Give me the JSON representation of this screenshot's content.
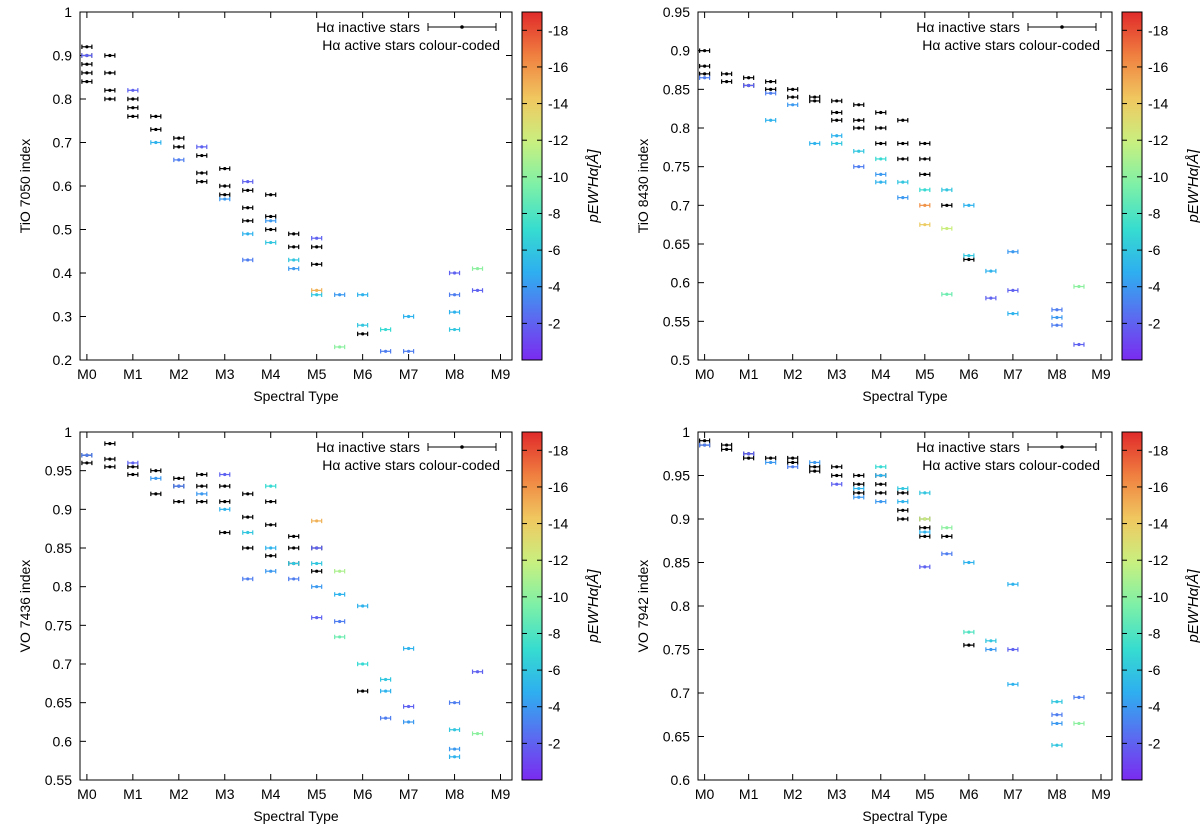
{
  "colorbar": {
    "ticks": [
      "-18",
      "-16",
      "-14",
      "-12",
      "-10",
      "-8",
      "-6",
      "-4",
      "-2"
    ],
    "label": "pEW'Hα[Å]",
    "range": [
      -19,
      0
    ],
    "stops": [
      "#7a2bf0",
      "#5a6cf0",
      "#2eaef0",
      "#36dcd0",
      "#7cf0a8",
      "#c8f080",
      "#f0c860",
      "#f08040",
      "#e02a2a"
    ]
  },
  "legend": {
    "inactive": "Hα inactive stars",
    "active": "Hα active stars colour-coded"
  },
  "chart_data": [
    {
      "type": "scatter",
      "ylabel": "TiO 7050 index",
      "xlabel": "Spectral Type",
      "ylim": [
        0.2,
        1.0
      ],
      "yticks": [
        "0.2",
        "0.3",
        "0.4",
        "0.5",
        "0.6",
        "0.7",
        "0.8",
        "0.9",
        "1"
      ],
      "xticks": [
        "M0",
        "M1",
        "M2",
        "M3",
        "M4",
        "M5",
        "M6",
        "M7",
        "M8",
        "M9"
      ],
      "xrange": [
        -0.15,
        9.25
      ],
      "inactive": [
        [
          0,
          0.92
        ],
        [
          0,
          0.9
        ],
        [
          0,
          0.88
        ],
        [
          0,
          0.86
        ],
        [
          0,
          0.84
        ],
        [
          0.5,
          0.9
        ],
        [
          0.5,
          0.86
        ],
        [
          0.5,
          0.82
        ],
        [
          0.5,
          0.8
        ],
        [
          1,
          0.8
        ],
        [
          1,
          0.78
        ],
        [
          1,
          0.76
        ],
        [
          1.5,
          0.76
        ],
        [
          1.5,
          0.73
        ],
        [
          2,
          0.71
        ],
        [
          2,
          0.69
        ],
        [
          2.5,
          0.67
        ],
        [
          2.5,
          0.63
        ],
        [
          2.5,
          0.61
        ],
        [
          3,
          0.64
        ],
        [
          3,
          0.6
        ],
        [
          3,
          0.58
        ],
        [
          3.5,
          0.59
        ],
        [
          3.5,
          0.55
        ],
        [
          3.5,
          0.52
        ],
        [
          4,
          0.58
        ],
        [
          4,
          0.53
        ],
        [
          4,
          0.5
        ],
        [
          4.5,
          0.49
        ],
        [
          4.5,
          0.46
        ],
        [
          5,
          0.46
        ],
        [
          5,
          0.42
        ],
        [
          6,
          0.26
        ]
      ],
      "active": [
        [
          0,
          0.9,
          -2
        ],
        [
          1,
          0.82,
          -2
        ],
        [
          1.5,
          0.7,
          -5
        ],
        [
          2,
          0.66,
          -3
        ],
        [
          2.5,
          0.69,
          -2
        ],
        [
          3,
          0.57,
          -4
        ],
        [
          3.5,
          0.61,
          -2
        ],
        [
          3.5,
          0.49,
          -5
        ],
        [
          3.5,
          0.43,
          -3
        ],
        [
          4,
          0.47,
          -6
        ],
        [
          4,
          0.52,
          -4
        ],
        [
          4.5,
          0.43,
          -6
        ],
        [
          4.5,
          0.41,
          -4
        ],
        [
          5,
          0.48,
          -2
        ],
        [
          5,
          0.36,
          -15
        ],
        [
          5,
          0.35,
          -6
        ],
        [
          5.5,
          0.35,
          -4
        ],
        [
          5.5,
          0.23,
          -10
        ],
        [
          6,
          0.35,
          -5
        ],
        [
          6,
          0.28,
          -6
        ],
        [
          6.5,
          0.27,
          -7
        ],
        [
          6.5,
          0.22,
          -3
        ],
        [
          7,
          0.3,
          -5
        ],
        [
          7,
          0.22,
          -3
        ],
        [
          8,
          0.4,
          -2
        ],
        [
          8,
          0.35,
          -3
        ],
        [
          8,
          0.31,
          -5
        ],
        [
          8,
          0.27,
          -6
        ],
        [
          8.5,
          0.41,
          -10
        ],
        [
          8.5,
          0.36,
          -2
        ]
      ]
    },
    {
      "type": "scatter",
      "ylabel": "TiO 8430 index",
      "xlabel": "Spectral Type",
      "ylim": [
        0.5,
        0.95
      ],
      "yticks": [
        "0.5",
        "0.55",
        "0.6",
        "0.65",
        "0.7",
        "0.75",
        "0.8",
        "0.85",
        "0.9",
        "0.95"
      ],
      "xticks": [
        "M0",
        "M1",
        "M2",
        "M3",
        "M4",
        "M5",
        "M6",
        "M7",
        "M8",
        "M9"
      ],
      "xrange": [
        -0.15,
        9.25
      ],
      "inactive": [
        [
          0,
          0.9
        ],
        [
          0,
          0.88
        ],
        [
          0,
          0.87
        ],
        [
          0.5,
          0.87
        ],
        [
          0.5,
          0.86
        ],
        [
          1,
          0.865
        ],
        [
          1,
          0.855
        ],
        [
          1.5,
          0.86
        ],
        [
          1.5,
          0.85
        ],
        [
          2,
          0.85
        ],
        [
          2,
          0.84
        ],
        [
          2.5,
          0.84
        ],
        [
          2.5,
          0.835
        ],
        [
          3,
          0.835
        ],
        [
          3,
          0.82
        ],
        [
          3,
          0.81
        ],
        [
          3.5,
          0.83
        ],
        [
          3.5,
          0.81
        ],
        [
          3.5,
          0.8
        ],
        [
          4,
          0.82
        ],
        [
          4,
          0.8
        ],
        [
          4,
          0.78
        ],
        [
          4.5,
          0.81
        ],
        [
          4.5,
          0.78
        ],
        [
          4.5,
          0.76
        ],
        [
          5,
          0.78
        ],
        [
          5,
          0.76
        ],
        [
          5,
          0.74
        ],
        [
          5.5,
          0.7
        ],
        [
          6,
          0.63
        ]
      ],
      "active": [
        [
          0,
          0.865,
          -3
        ],
        [
          1,
          0.855,
          -2
        ],
        [
          1.5,
          0.81,
          -5
        ],
        [
          1.5,
          0.845,
          -3
        ],
        [
          2,
          0.83,
          -4
        ],
        [
          2.5,
          0.78,
          -5
        ],
        [
          3,
          0.79,
          -5
        ],
        [
          3,
          0.78,
          -6
        ],
        [
          3.5,
          0.75,
          -3
        ],
        [
          3.5,
          0.77,
          -6
        ],
        [
          4,
          0.73,
          -5
        ],
        [
          4,
          0.76,
          -7
        ],
        [
          4,
          0.74,
          -4
        ],
        [
          4.5,
          0.73,
          -6
        ],
        [
          4.5,
          0.71,
          -4
        ],
        [
          5,
          0.72,
          -7
        ],
        [
          5,
          0.7,
          -16
        ],
        [
          5,
          0.675,
          -14
        ],
        [
          5.5,
          0.72,
          -6
        ],
        [
          5.5,
          0.67,
          -12
        ],
        [
          5.5,
          0.585,
          -9
        ],
        [
          6,
          0.7,
          -5
        ],
        [
          6,
          0.635,
          -6
        ],
        [
          6.5,
          0.615,
          -5
        ],
        [
          6.5,
          0.58,
          -2
        ],
        [
          7,
          0.64,
          -4
        ],
        [
          7,
          0.59,
          -2
        ],
        [
          7,
          0.56,
          -5
        ],
        [
          8,
          0.565,
          -3
        ],
        [
          8,
          0.555,
          -4
        ],
        [
          8,
          0.545,
          -3
        ],
        [
          8.5,
          0.595,
          -10
        ],
        [
          8.5,
          0.52,
          -2
        ]
      ]
    },
    {
      "type": "scatter",
      "ylabel": "VO 7436 index",
      "xlabel": "Spectral Type",
      "ylim": [
        0.55,
        1.0
      ],
      "yticks": [
        "0.55",
        "0.6",
        "0.65",
        "0.7",
        "0.75",
        "0.8",
        "0.85",
        "0.9",
        "0.95",
        "1"
      ],
      "xticks": [
        "M0",
        "M1",
        "M2",
        "M3",
        "M4",
        "M5",
        "M6",
        "M7",
        "M8",
        "M9"
      ],
      "xrange": [
        -0.15,
        9.25
      ],
      "inactive": [
        [
          0,
          0.97
        ],
        [
          0,
          0.96
        ],
        [
          0.5,
          0.985
        ],
        [
          0.5,
          0.965
        ],
        [
          0.5,
          0.955
        ],
        [
          1,
          0.955
        ],
        [
          1,
          0.945
        ],
        [
          1.5,
          0.95
        ],
        [
          1.5,
          0.92
        ],
        [
          2,
          0.94
        ],
        [
          2,
          0.93
        ],
        [
          2,
          0.91
        ],
        [
          2.5,
          0.945
        ],
        [
          2.5,
          0.93
        ],
        [
          2.5,
          0.91
        ],
        [
          3,
          0.93
        ],
        [
          3,
          0.91
        ],
        [
          3,
          0.87
        ],
        [
          3.5,
          0.92
        ],
        [
          3.5,
          0.89
        ],
        [
          3.5,
          0.85
        ],
        [
          4,
          0.91
        ],
        [
          4,
          0.88
        ],
        [
          4,
          0.84
        ],
        [
          4.5,
          0.865
        ],
        [
          4.5,
          0.85
        ],
        [
          4.5,
          0.83
        ],
        [
          5,
          0.85
        ],
        [
          5,
          0.82
        ],
        [
          6,
          0.665
        ]
      ],
      "active": [
        [
          0,
          0.97,
          -3
        ],
        [
          1,
          0.96,
          -2
        ],
        [
          1.5,
          0.94,
          -4
        ],
        [
          2,
          0.93,
          -3
        ],
        [
          2.5,
          0.92,
          -4
        ],
        [
          3,
          0.945,
          -2
        ],
        [
          3,
          0.9,
          -5
        ],
        [
          3.5,
          0.81,
          -3
        ],
        [
          3.5,
          0.87,
          -6
        ],
        [
          4,
          0.93,
          -7
        ],
        [
          4,
          0.85,
          -5
        ],
        [
          4,
          0.82,
          -4
        ],
        [
          4.5,
          0.83,
          -6
        ],
        [
          4.5,
          0.81,
          -3
        ],
        [
          5,
          0.885,
          -15
        ],
        [
          5,
          0.85,
          -2
        ],
        [
          5,
          0.83,
          -6
        ],
        [
          5,
          0.8,
          -4
        ],
        [
          5,
          0.76,
          -2
        ],
        [
          5.5,
          0.82,
          -11
        ],
        [
          5.5,
          0.79,
          -5
        ],
        [
          5.5,
          0.755,
          -3
        ],
        [
          5.5,
          0.735,
          -9
        ],
        [
          6,
          0.775,
          -5
        ],
        [
          6,
          0.7,
          -7
        ],
        [
          6.5,
          0.68,
          -6
        ],
        [
          6.5,
          0.665,
          -5
        ],
        [
          6.5,
          0.63,
          -3
        ],
        [
          7,
          0.72,
          -5
        ],
        [
          7,
          0.645,
          -2
        ],
        [
          7,
          0.625,
          -4
        ],
        [
          8,
          0.65,
          -3
        ],
        [
          8,
          0.615,
          -6
        ],
        [
          8,
          0.59,
          -4
        ],
        [
          8,
          0.58,
          -5
        ],
        [
          8.5,
          0.69,
          -2
        ],
        [
          8.5,
          0.61,
          -10
        ]
      ]
    },
    {
      "type": "scatter",
      "ylabel": "VO 7942 index",
      "xlabel": "Spectral Type",
      "ylim": [
        0.6,
        1.0
      ],
      "yticks": [
        "0.6",
        "0.65",
        "0.7",
        "0.75",
        "0.8",
        "0.85",
        "0.9",
        "0.95",
        "1"
      ],
      "xticks": [
        "M0",
        "M1",
        "M2",
        "M3",
        "M4",
        "M5",
        "M6",
        "M7",
        "M8",
        "M9"
      ],
      "xrange": [
        -0.15,
        9.25
      ],
      "inactive": [
        [
          0,
          0.99
        ],
        [
          0,
          0.985
        ],
        [
          0.5,
          0.985
        ],
        [
          0.5,
          0.98
        ],
        [
          1,
          0.975
        ],
        [
          1,
          0.97
        ],
        [
          1.5,
          0.97
        ],
        [
          2,
          0.97
        ],
        [
          2,
          0.965
        ],
        [
          2.5,
          0.96
        ],
        [
          2.5,
          0.955
        ],
        [
          3,
          0.96
        ],
        [
          3,
          0.95
        ],
        [
          3.5,
          0.95
        ],
        [
          3.5,
          0.94
        ],
        [
          3.5,
          0.93
        ],
        [
          4,
          0.95
        ],
        [
          4,
          0.94
        ],
        [
          4,
          0.93
        ],
        [
          4.5,
          0.93
        ],
        [
          4.5,
          0.91
        ],
        [
          4.5,
          0.9
        ],
        [
          5,
          0.9
        ],
        [
          5,
          0.89
        ],
        [
          5,
          0.88
        ],
        [
          5.5,
          0.88
        ],
        [
          6,
          0.755
        ]
      ],
      "active": [
        [
          0,
          0.985,
          -3
        ],
        [
          1,
          0.975,
          -2
        ],
        [
          1.5,
          0.965,
          -4
        ],
        [
          2,
          0.96,
          -3
        ],
        [
          2.5,
          0.965,
          -4
        ],
        [
          3,
          0.94,
          -2
        ],
        [
          3.5,
          0.935,
          -5
        ],
        [
          3.5,
          0.925,
          -4
        ],
        [
          4,
          0.96,
          -7
        ],
        [
          4,
          0.95,
          -5
        ],
        [
          4,
          0.92,
          -4
        ],
        [
          4.5,
          0.935,
          -6
        ],
        [
          4.5,
          0.92,
          -5
        ],
        [
          5,
          0.93,
          -6
        ],
        [
          5,
          0.9,
          -12
        ],
        [
          5,
          0.885,
          -5
        ],
        [
          5,
          0.845,
          -2
        ],
        [
          5.5,
          0.89,
          -10
        ],
        [
          5.5,
          0.86,
          -3
        ],
        [
          6,
          0.85,
          -5
        ],
        [
          6,
          0.77,
          -8
        ],
        [
          6.5,
          0.76,
          -6
        ],
        [
          6.5,
          0.75,
          -4
        ],
        [
          7,
          0.825,
          -5
        ],
        [
          7,
          0.75,
          -2
        ],
        [
          7,
          0.71,
          -5
        ],
        [
          8,
          0.69,
          -6
        ],
        [
          8,
          0.675,
          -3
        ],
        [
          8,
          0.665,
          -4
        ],
        [
          8,
          0.64,
          -6
        ],
        [
          8.5,
          0.695,
          -3
        ],
        [
          8.5,
          0.665,
          -10
        ]
      ]
    }
  ]
}
